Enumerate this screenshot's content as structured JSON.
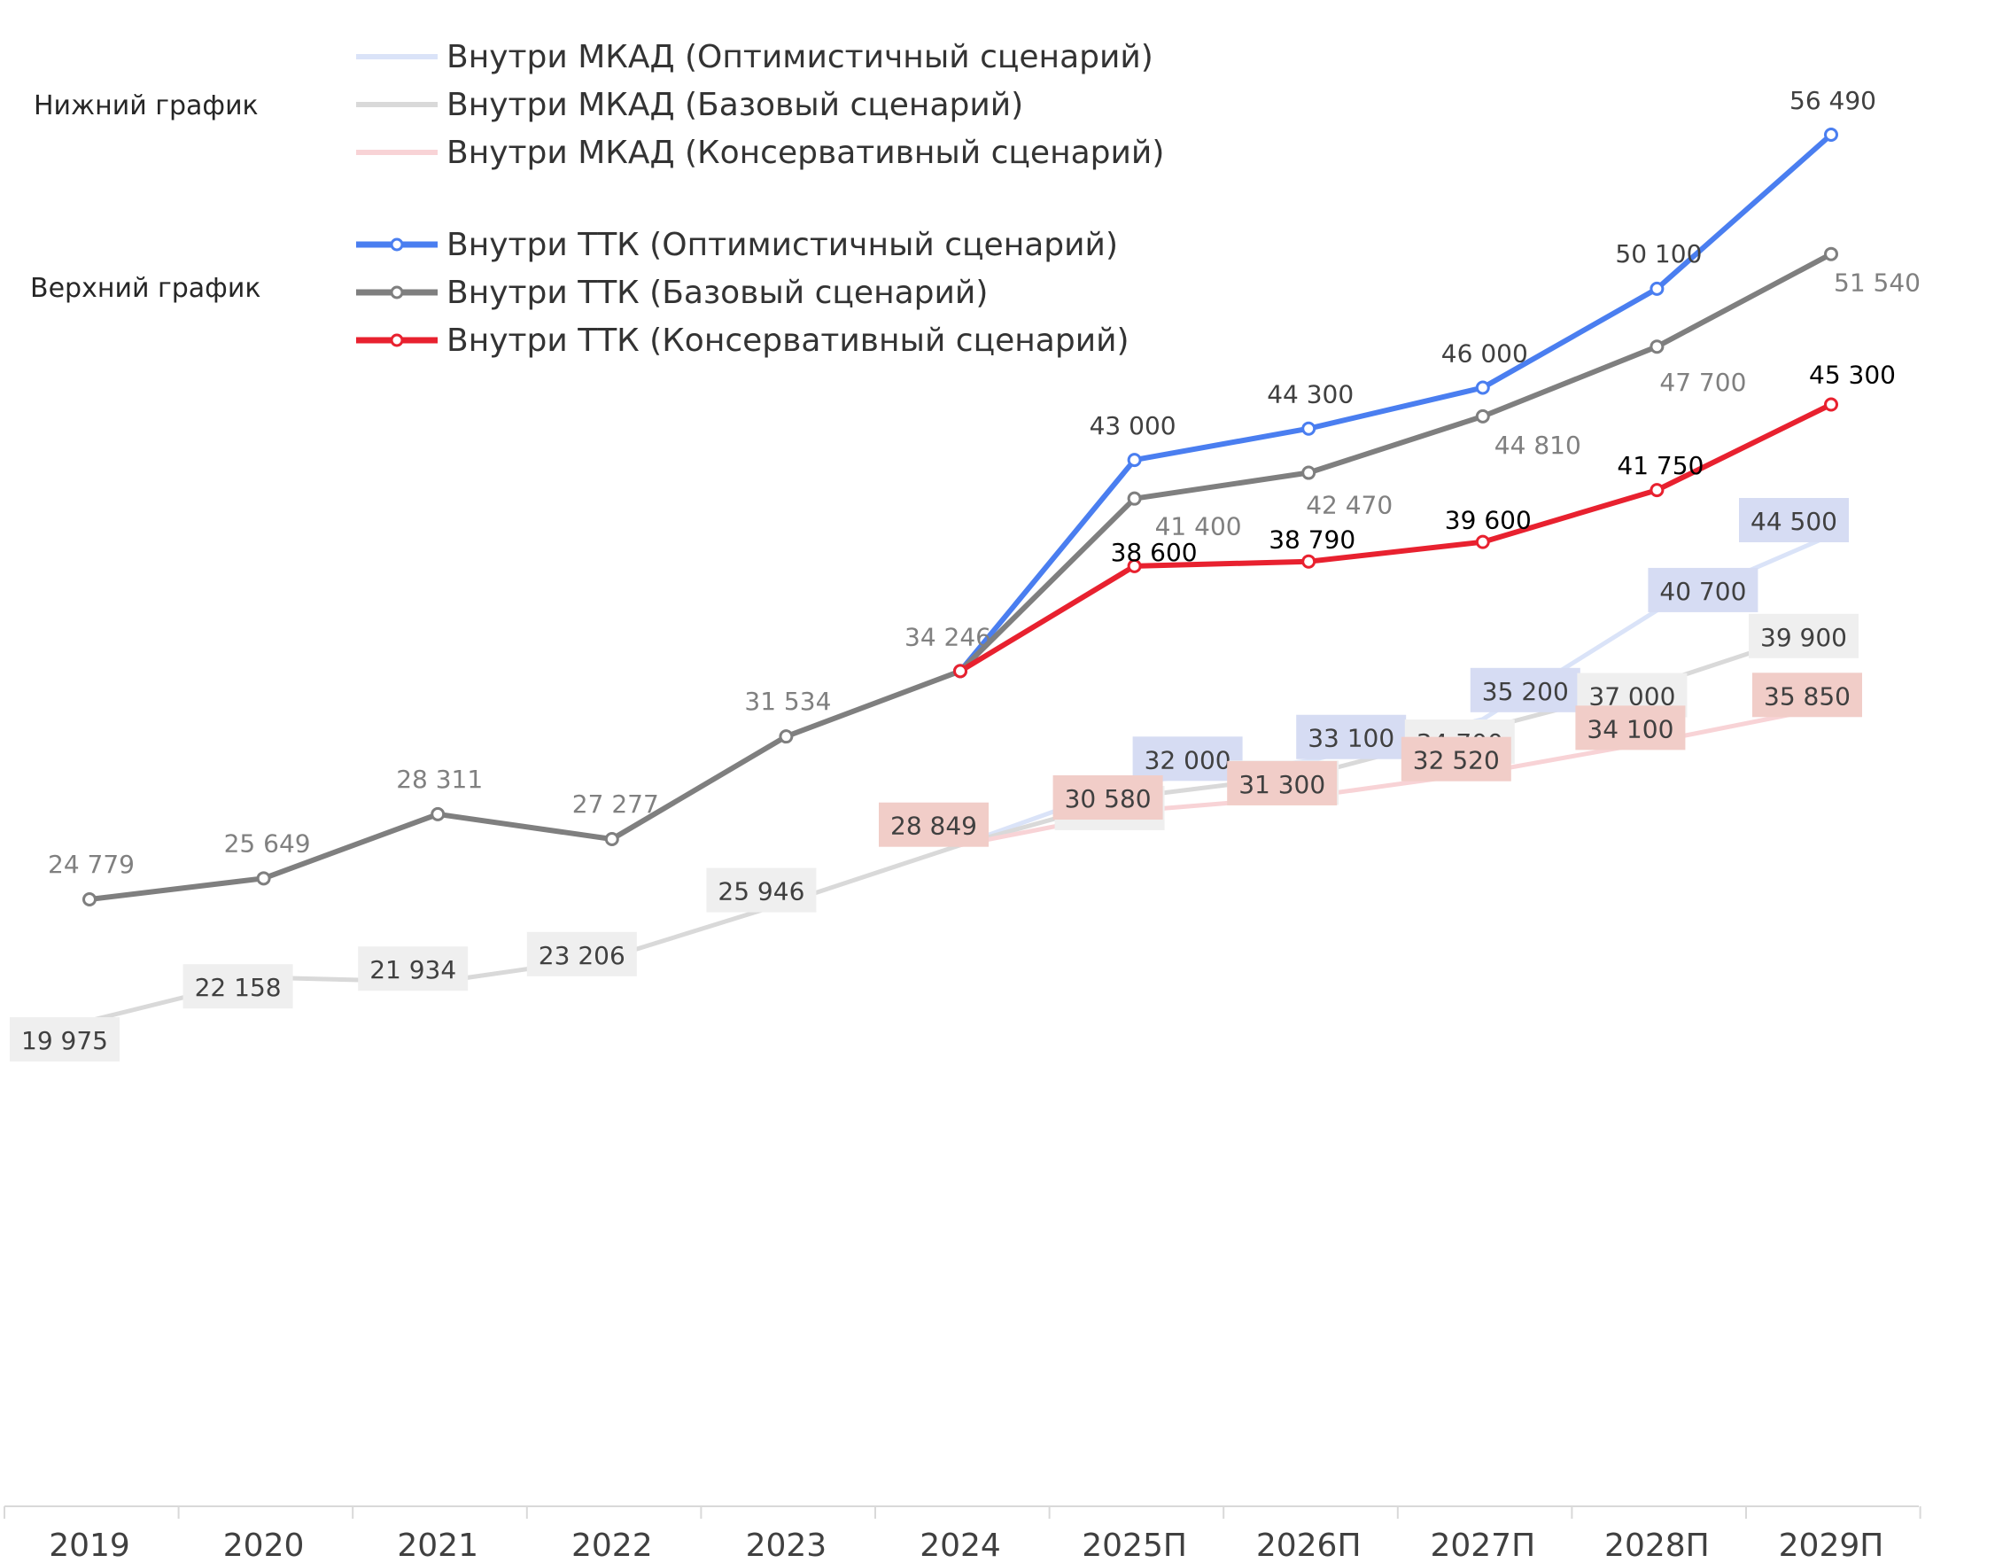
{
  "side_labels": {
    "lower": "Нижний график",
    "upper": "Верхний график"
  },
  "chart_data": {
    "type": "line",
    "categories": [
      "2019",
      "2020",
      "2021",
      "2022",
      "2023",
      "2024",
      "2025П",
      "2026П",
      "2027П",
      "2028П",
      "2029П"
    ],
    "series": [
      {
        "key": "mkad_opt",
        "name": "Внутри МКАД (Оптимистичный сценарий)",
        "group": "lower",
        "color": "#dae3f8",
        "label_bg": "#d6dcf3",
        "label_color": "#404040",
        "values": [
          null,
          null,
          null,
          null,
          null,
          28849,
          32000,
          33100,
          35200,
          40700,
          44500
        ],
        "labels": [
          null,
          null,
          null,
          null,
          null,
          null,
          "32 000",
          "33 100",
          "35 200",
          "40 700",
          "44 500"
        ]
      },
      {
        "key": "mkad_base",
        "name": "Внутри МКАД (Базовый сценарий)",
        "group": "lower",
        "color": "#d9d9d9",
        "label_bg": "#efefef",
        "label_color": "#404040",
        "values": [
          19975,
          22158,
          21934,
          23206,
          25946,
          28849,
          31300,
          32400,
          34700,
          37000,
          39900
        ],
        "labels": [
          "19 975",
          "22 158",
          "21 934",
          "23 206",
          "25 946",
          null,
          "31 300",
          "32 400",
          "34 700",
          "37 000",
          "39 900"
        ]
      },
      {
        "key": "mkad_cons",
        "name": "Внутри МКАД (Консервативный сценарий)",
        "group": "lower",
        "color": "#f8d3d6",
        "label_bg": "#f1cdc8",
        "label_color": "#404040",
        "values": [
          null,
          null,
          null,
          null,
          null,
          28849,
          30580,
          31300,
          32520,
          34100,
          35850
        ],
        "labels": [
          null,
          null,
          null,
          null,
          null,
          "28 849",
          "30 580",
          "31 300",
          "32 520",
          "34 100",
          "35 850"
        ]
      },
      {
        "key": "ttk_opt",
        "name": "Внутри ТТК (Оптимистичный сценарий)",
        "group": "upper",
        "color": "#4a7ef0",
        "label_color": "#404040",
        "values": [
          null,
          null,
          null,
          null,
          null,
          34246,
          43000,
          44300,
          46000,
          50100,
          56490
        ],
        "labels": [
          null,
          null,
          null,
          null,
          null,
          null,
          "43 000",
          "44 300",
          "46 000",
          "50 100",
          "56 490"
        ]
      },
      {
        "key": "ttk_base",
        "name": "Внутри ТТК (Базовый сценарий)",
        "group": "upper",
        "color": "#7f7f7f",
        "label_color": "#808080",
        "values": [
          24779,
          25649,
          28311,
          27277,
          31534,
          34246,
          41400,
          42470,
          44810,
          47700,
          51540
        ],
        "labels": [
          "24 779",
          "25 649",
          "28 311",
          "27 277",
          "31 534",
          "34 246",
          "41 400",
          "42 470",
          "44 810",
          "47 700",
          "51 540"
        ]
      },
      {
        "key": "ttk_cons",
        "name": "Внутри ТТК (Консервативный сценарий)",
        "group": "upper",
        "color": "#e8212f",
        "label_color": "#000000",
        "values": [
          null,
          null,
          null,
          null,
          null,
          34246,
          38600,
          38790,
          39600,
          41750,
          45300
        ],
        "labels": [
          null,
          null,
          null,
          null,
          null,
          null,
          "38 600",
          "38 790",
          "39 600",
          "41 750",
          "45 300"
        ]
      }
    ]
  }
}
